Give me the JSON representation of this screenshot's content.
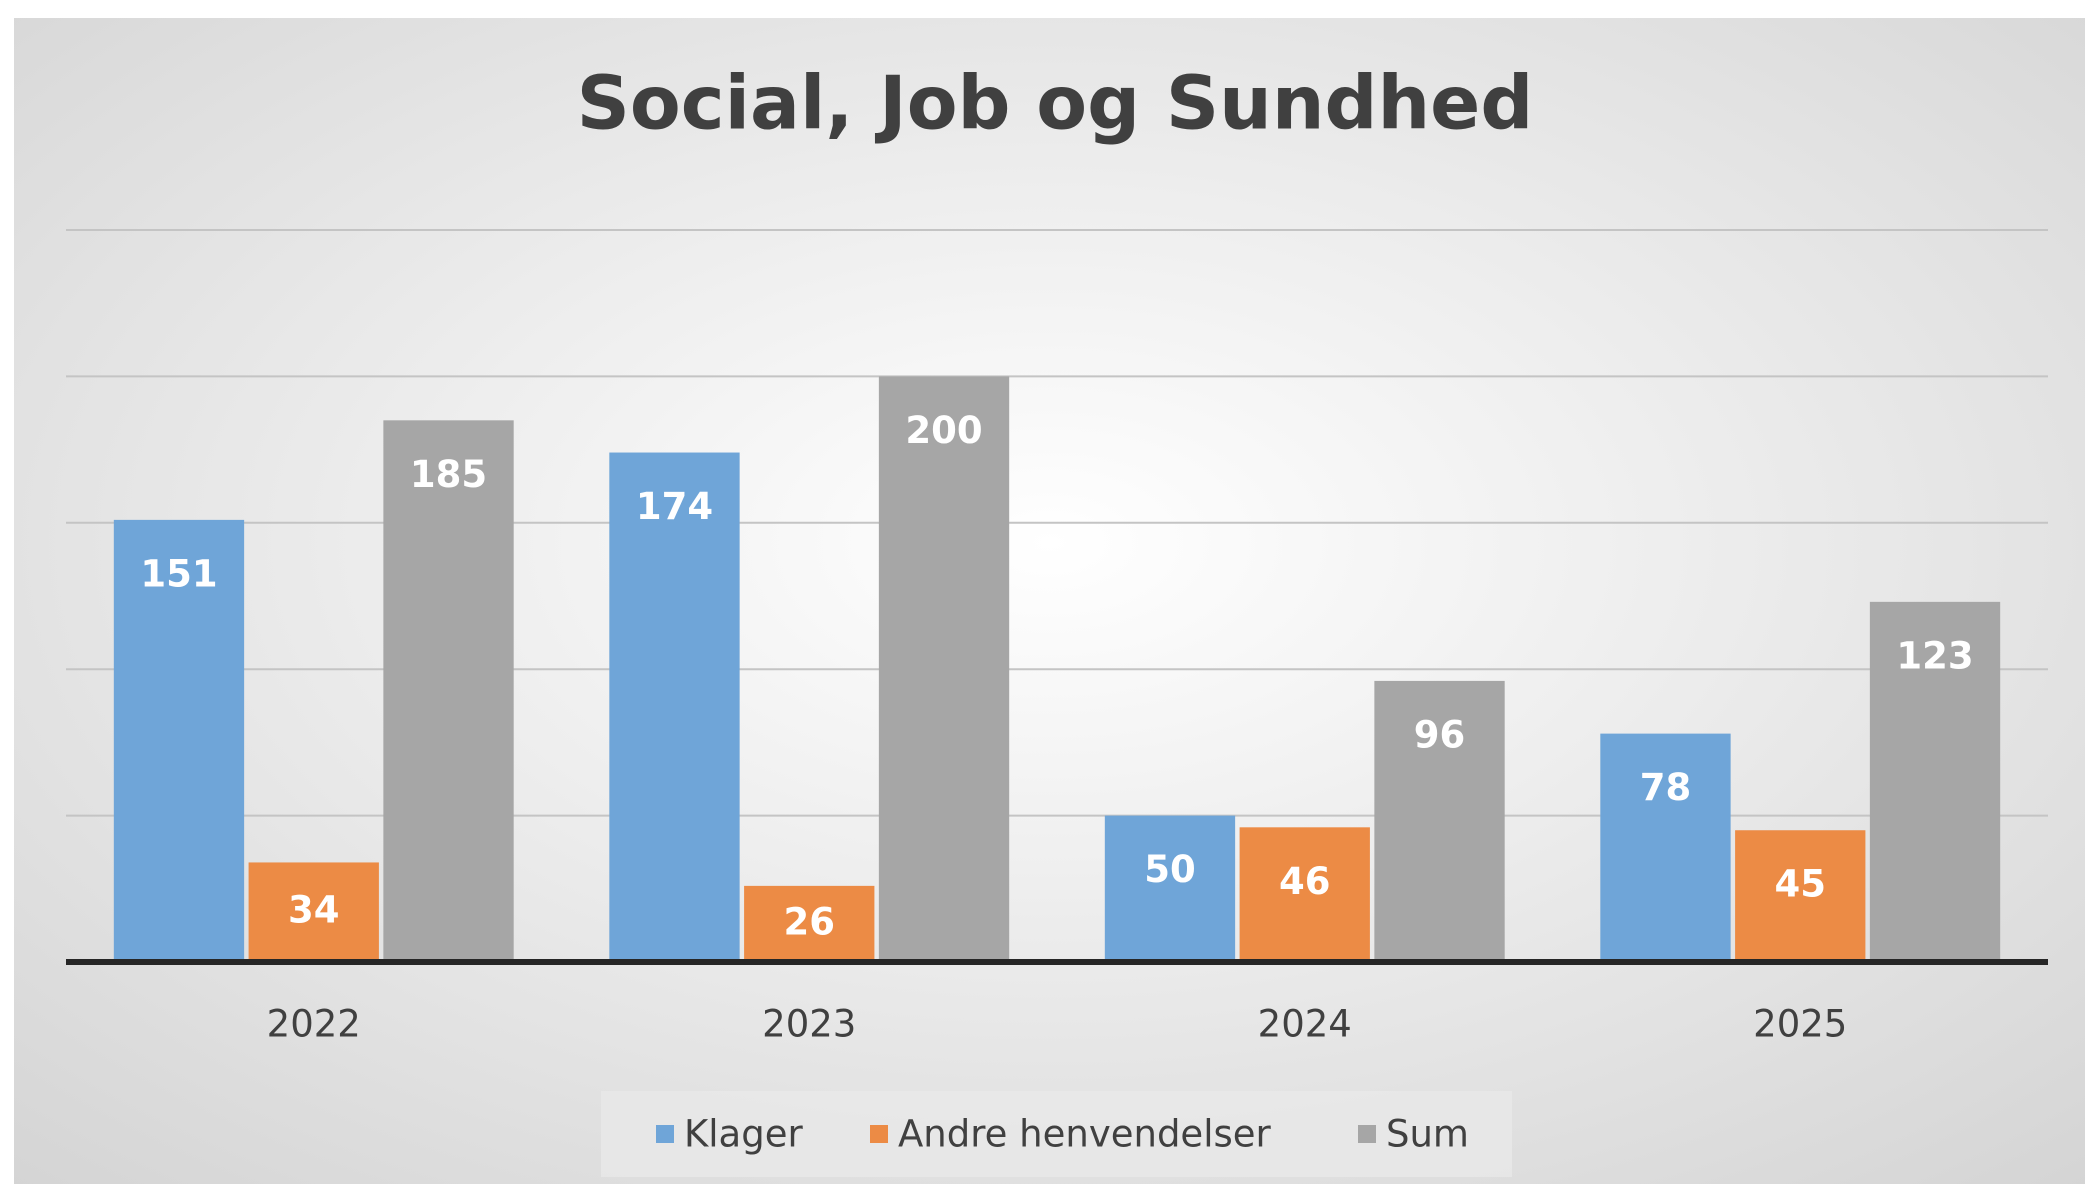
{
  "chart_data": {
    "type": "bar",
    "title": "Social, Job og Sundhed",
    "categories": [
      "2022",
      "2023",
      "2024",
      "2025"
    ],
    "series": [
      {
        "name": "Klager",
        "color": "#6fa5d8",
        "values": [
          151,
          174,
          50,
          78
        ]
      },
      {
        "name": "Andre henvendelser",
        "color": "#ec8b45",
        "values": [
          34,
          26,
          46,
          45
        ]
      },
      {
        "name": "Sum",
        "color": "#a6a6a6",
        "values": [
          185,
          200,
          96,
          123
        ]
      }
    ],
    "ylim": [
      0,
      250
    ],
    "yticks": [
      0,
      50,
      100,
      150,
      200,
      250
    ],
    "grid": true,
    "legend": "bottom"
  }
}
